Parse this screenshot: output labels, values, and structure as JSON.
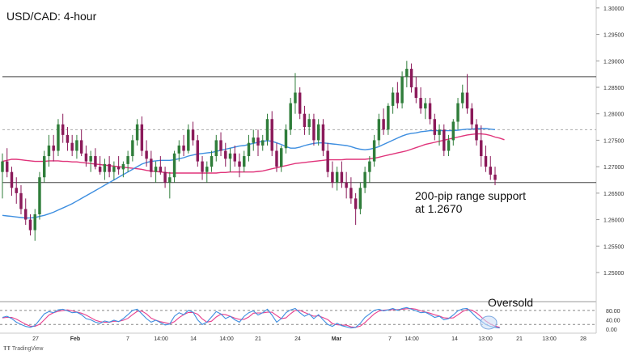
{
  "chart_data": {
    "type": "candlestick",
    "title": "USD/CAD: 4-hour",
    "price_axis": {
      "ticks": [
        "1.30000",
        "1.29500",
        "1.29000",
        "1.28500",
        "1.28000",
        "1.27500",
        "1.27000",
        "1.26500",
        "1.26000",
        "1.25500",
        "1.25000"
      ],
      "range": [
        1.2445,
        1.3015
      ]
    },
    "osc_axis": {
      "ticks": [
        "80.00",
        "40.00",
        "0.00"
      ],
      "range": [
        -10,
        100
      ]
    },
    "time_labels": [
      "27",
      "Feb",
      "7",
      "14:00",
      "14",
      "14:00",
      "21",
      "24",
      "Mar",
      "7",
      "14:00",
      "14",
      "13:00",
      "21",
      "13:00",
      "28"
    ],
    "time_label_bold": [
      false,
      true,
      false,
      false,
      false,
      false,
      false,
      false,
      true,
      false,
      false,
      false,
      false,
      false,
      false,
      false
    ],
    "levels": [
      {
        "value": 1.287,
        "style": "solid"
      },
      {
        "value": 1.277,
        "style": "dashed"
      },
      {
        "value": 1.267,
        "style": "solid"
      }
    ],
    "osc_levels": [
      {
        "value": 80,
        "style": "dashed"
      },
      {
        "value": 20,
        "style": "dashed"
      }
    ],
    "candles_ohlc": [
      [
        1.269,
        1.2725,
        1.264,
        1.271
      ],
      [
        1.271,
        1.2735,
        1.268,
        1.269
      ],
      [
        1.269,
        1.27,
        1.2645,
        1.266
      ],
      [
        1.266,
        1.268,
        1.263,
        1.265
      ],
      [
        1.265,
        1.2665,
        1.261,
        1.262
      ],
      [
        1.262,
        1.264,
        1.259,
        1.26
      ],
      [
        1.26,
        1.261,
        1.257,
        1.258
      ],
      [
        1.258,
        1.262,
        1.256,
        1.261
      ],
      [
        1.261,
        1.269,
        1.26,
        1.268
      ],
      [
        1.268,
        1.273,
        1.267,
        1.272
      ],
      [
        1.272,
        1.276,
        1.27,
        1.274
      ],
      [
        1.274,
        1.276,
        1.271,
        1.273
      ],
      [
        1.273,
        1.279,
        1.272,
        1.278
      ],
      [
        1.278,
        1.28,
        1.2745,
        1.276
      ],
      [
        1.276,
        1.2775,
        1.273,
        1.2745
      ],
      [
        1.2745,
        1.276,
        1.272,
        1.273
      ],
      [
        1.273,
        1.276,
        1.2715,
        1.275
      ],
      [
        1.275,
        1.277,
        1.272,
        1.2725
      ],
      [
        1.2725,
        1.274,
        1.27,
        1.271
      ],
      [
        1.271,
        1.273,
        1.269,
        1.272
      ],
      [
        1.272,
        1.2735,
        1.2695,
        1.27
      ],
      [
        1.27,
        1.272,
        1.2685,
        1.269
      ],
      [
        1.269,
        1.2715,
        1.2675,
        1.2705
      ],
      [
        1.2705,
        1.272,
        1.268,
        1.269
      ],
      [
        1.269,
        1.271,
        1.2675,
        1.27
      ],
      [
        1.27,
        1.272,
        1.2685,
        1.2695
      ],
      [
        1.2695,
        1.271,
        1.268,
        1.2705
      ],
      [
        1.2705,
        1.273,
        1.269,
        1.272
      ],
      [
        1.272,
        1.276,
        1.271,
        1.275
      ],
      [
        1.275,
        1.279,
        1.274,
        1.278
      ],
      [
        1.278,
        1.2795,
        1.272,
        1.273
      ],
      [
        1.273,
        1.275,
        1.27,
        1.2715
      ],
      [
        1.2715,
        1.273,
        1.268,
        1.269
      ],
      [
        1.269,
        1.271,
        1.267,
        1.27
      ],
      [
        1.27,
        1.272,
        1.2685,
        1.269
      ],
      [
        1.269,
        1.27,
        1.266,
        1.267
      ],
      [
        1.267,
        1.269,
        1.264,
        1.268
      ],
      [
        1.268,
        1.273,
        1.267,
        1.2725
      ],
      [
        1.2725,
        1.275,
        1.271,
        1.274
      ],
      [
        1.274,
        1.276,
        1.272,
        1.273
      ],
      [
        1.273,
        1.278,
        1.2725,
        1.277
      ],
      [
        1.277,
        1.2785,
        1.274,
        1.275
      ],
      [
        1.275,
        1.276,
        1.27,
        1.271
      ],
      [
        1.271,
        1.272,
        1.2675,
        1.269
      ],
      [
        1.269,
        1.271,
        1.267,
        1.27
      ],
      [
        1.27,
        1.273,
        1.269,
        1.272
      ],
      [
        1.272,
        1.276,
        1.271,
        1.275
      ],
      [
        1.275,
        1.2765,
        1.272,
        1.273
      ],
      [
        1.273,
        1.2745,
        1.27,
        1.2715
      ],
      [
        1.2715,
        1.2735,
        1.269,
        1.2725
      ],
      [
        1.2725,
        1.274,
        1.27,
        1.271
      ],
      [
        1.271,
        1.2725,
        1.268,
        1.27
      ],
      [
        1.27,
        1.273,
        1.269,
        1.272
      ],
      [
        1.272,
        1.276,
        1.271,
        1.2745
      ],
      [
        1.2745,
        1.277,
        1.273,
        1.2755
      ],
      [
        1.2755,
        1.277,
        1.272,
        1.274
      ],
      [
        1.274,
        1.276,
        1.273,
        1.275
      ],
      [
        1.275,
        1.28,
        1.274,
        1.279
      ],
      [
        1.279,
        1.2805,
        1.272,
        1.273
      ],
      [
        1.273,
        1.2745,
        1.269,
        1.27
      ],
      [
        1.27,
        1.274,
        1.269,
        1.2735
      ],
      [
        1.2735,
        1.278,
        1.2725,
        1.277
      ],
      [
        1.277,
        1.283,
        1.276,
        1.282
      ],
      [
        1.282,
        1.2877,
        1.28,
        1.284
      ],
      [
        1.284,
        1.285,
        1.279,
        1.28
      ],
      [
        1.28,
        1.2815,
        1.276,
        1.2775
      ],
      [
        1.2775,
        1.28,
        1.276,
        1.279
      ],
      [
        1.279,
        1.28,
        1.274,
        1.275
      ],
      [
        1.275,
        1.279,
        1.274,
        1.278
      ],
      [
        1.278,
        1.279,
        1.272,
        1.273
      ],
      [
        1.273,
        1.2745,
        1.268,
        1.269
      ],
      [
        1.269,
        1.271,
        1.266,
        1.267
      ],
      [
        1.267,
        1.27,
        1.2655,
        1.269
      ],
      [
        1.269,
        1.271,
        1.266,
        1.267
      ],
      [
        1.267,
        1.269,
        1.264,
        1.266
      ],
      [
        1.266,
        1.268,
        1.263,
        1.264
      ],
      [
        1.264,
        1.265,
        1.259,
        1.262
      ],
      [
        1.262,
        1.267,
        1.261,
        1.266
      ],
      [
        1.266,
        1.27,
        1.265,
        1.269
      ],
      [
        1.269,
        1.272,
        1.267,
        1.271
      ],
      [
        1.271,
        1.276,
        1.27,
        1.275
      ],
      [
        1.275,
        1.28,
        1.274,
        1.279
      ],
      [
        1.279,
        1.281,
        1.276,
        1.277
      ],
      [
        1.277,
        1.282,
        1.276,
        1.2815
      ],
      [
        1.2815,
        1.285,
        1.28,
        1.284
      ],
      [
        1.284,
        1.286,
        1.281,
        1.282
      ],
      [
        1.282,
        1.288,
        1.281,
        1.287
      ],
      [
        1.287,
        1.29,
        1.285,
        1.2885
      ],
      [
        1.2885,
        1.2895,
        1.284,
        1.285
      ],
      [
        1.285,
        1.287,
        1.282,
        1.283
      ],
      [
        1.283,
        1.285,
        1.28,
        1.281
      ],
      [
        1.281,
        1.283,
        1.279,
        1.282
      ],
      [
        1.282,
        1.283,
        1.278,
        1.279
      ],
      [
        1.279,
        1.28,
        1.275,
        1.276
      ],
      [
        1.276,
        1.278,
        1.274,
        1.277
      ],
      [
        1.277,
        1.278,
        1.272,
        1.273
      ],
      [
        1.273,
        1.276,
        1.272,
        1.275
      ],
      [
        1.275,
        1.279,
        1.274,
        1.2785
      ],
      [
        1.2785,
        1.283,
        1.277,
        1.282
      ],
      [
        1.282,
        1.2855,
        1.281,
        1.284
      ],
      [
        1.284,
        1.2875,
        1.28,
        1.281
      ],
      [
        1.281,
        1.282,
        1.277,
        1.278
      ],
      [
        1.278,
        1.279,
        1.274,
        1.275
      ],
      [
        1.275,
        1.2778,
        1.27,
        1.272
      ],
      [
        1.272,
        1.274,
        1.269,
        1.27
      ],
      [
        1.27,
        1.272,
        1.2675,
        1.2685
      ],
      [
        1.2685,
        1.27,
        1.2665,
        1.2675
      ]
    ],
    "sma_blue": [
      1.2608,
      1.2607,
      1.2606,
      1.2605,
      1.2604,
      1.2603,
      1.2603,
      1.2604,
      1.2606,
      1.2608,
      1.2611,
      1.2614,
      1.2618,
      1.2622,
      1.2626,
      1.263,
      1.2635,
      1.264,
      1.2645,
      1.265,
      1.2655,
      1.266,
      1.2665,
      1.267,
      1.2675,
      1.268,
      1.2685,
      1.269,
      1.2695,
      1.27,
      1.2705,
      1.2708,
      1.271,
      1.2711,
      1.2712,
      1.2712,
      1.2712,
      1.2713,
      1.2715,
      1.2717,
      1.272,
      1.2722,
      1.2724,
      1.2725,
      1.2726,
      1.2727,
      1.2729,
      1.2731,
      1.2733,
      1.2735,
      1.2737,
      1.2739,
      1.274,
      1.2742,
      1.2744,
      1.2746,
      1.2748,
      1.2749,
      1.2748,
      1.2745,
      1.2742,
      1.2738,
      1.2735,
      1.2735,
      1.2737,
      1.274,
      1.2742,
      1.2744,
      1.2745,
      1.2745,
      1.2744,
      1.2743,
      1.2742,
      1.2741,
      1.274,
      1.2738,
      1.2735,
      1.2733,
      1.2732,
      1.2733,
      1.2735,
      1.2738,
      1.2742,
      1.2746,
      1.275,
      1.2754,
      1.2758,
      1.2761,
      1.2763,
      1.2764,
      1.2766,
      1.2767,
      1.2768,
      1.2768,
      1.2768,
      1.2768,
      1.2768,
      1.2768,
      1.2769,
      1.277,
      1.2771,
      1.2771,
      1.2772,
      1.2772,
      1.2772,
      1.2771,
      1.277
    ],
    "sma_pink": [
      1.271,
      1.2712,
      1.2714,
      1.2714,
      1.2713,
      1.2712,
      1.2711,
      1.271,
      1.271,
      1.271,
      1.2711,
      1.2711,
      1.2711,
      1.271,
      1.271,
      1.2709,
      1.2709,
      1.2708,
      1.2707,
      1.2706,
      1.2705,
      1.2704,
      1.2703,
      1.2702,
      1.2701,
      1.27,
      1.2699,
      1.2698,
      1.2697,
      1.2696,
      1.2695,
      1.2693,
      1.2692,
      1.2691,
      1.269,
      1.2689,
      1.2688,
      1.2688,
      1.2688,
      1.2688,
      1.2688,
      1.2688,
      1.2688,
      1.2688,
      1.2688,
      1.2688,
      1.2688,
      1.2689,
      1.2689,
      1.269,
      1.269,
      1.269,
      1.269,
      1.269,
      1.269,
      1.2691,
      1.2692,
      1.2694,
      1.2696,
      1.2698,
      1.27,
      1.2702,
      1.2704,
      1.2706,
      1.2707,
      1.2708,
      1.2709,
      1.271,
      1.2711,
      1.2712,
      1.2713,
      1.2713,
      1.2713,
      1.2713,
      1.2714,
      1.2714,
      1.2714,
      1.2714,
      1.2714,
      1.2715,
      1.2716,
      1.2718,
      1.272,
      1.2722,
      1.2724,
      1.2726,
      1.2728,
      1.273,
      1.2733,
      1.2736,
      1.2739,
      1.2742,
      1.2744,
      1.2746,
      1.2748,
      1.275,
      1.2752,
      1.2754,
      1.2756,
      1.2758,
      1.276,
      1.2761,
      1.2762,
      1.2762,
      1.2761,
      1.2759,
      1.2756,
      1.2754,
      1.2751
    ],
    "stoch_k": [
      50,
      55,
      45,
      30,
      20,
      12,
      8,
      15,
      40,
      65,
      75,
      70,
      82,
      85,
      78,
      70,
      72,
      62,
      45,
      40,
      30,
      25,
      35,
      30,
      38,
      32,
      45,
      62,
      80,
      85,
      65,
      45,
      30,
      38,
      28,
      18,
      22,
      55,
      70,
      62,
      80,
      72,
      40,
      20,
      30,
      52,
      75,
      65,
      45,
      55,
      40,
      30,
      55,
      70,
      78,
      60,
      70,
      85,
      60,
      30,
      45,
      70,
      82,
      88,
      70,
      55,
      65,
      45,
      62,
      40,
      20,
      12,
      25,
      15,
      10,
      5,
      8,
      25,
      50,
      65,
      80,
      85,
      78,
      82,
      88,
      80,
      88,
      92,
      85,
      78,
      70,
      72,
      62,
      50,
      55,
      40,
      45,
      60,
      78,
      86,
      88,
      70,
      50,
      35,
      20,
      12,
      8,
      5
    ],
    "stoch_d": [
      48,
      50,
      50,
      43,
      32,
      21,
      13,
      12,
      21,
      40,
      60,
      70,
      76,
      79,
      82,
      78,
      73,
      68,
      60,
      49,
      38,
      32,
      30,
      30,
      34,
      33,
      38,
      46,
      62,
      76,
      77,
      65,
      47,
      38,
      32,
      28,
      23,
      32,
      49,
      62,
      71,
      71,
      64,
      44,
      30,
      34,
      52,
      64,
      62,
      55,
      47,
      42,
      42,
      52,
      68,
      69,
      69,
      72,
      72,
      58,
      45,
      48,
      66,
      80,
      80,
      71,
      63,
      55,
      57,
      49,
      41,
      24,
      19,
      17,
      17,
      10,
      8,
      13,
      28,
      47,
      65,
      77,
      81,
      82,
      83,
      83,
      85,
      87,
      88,
      85,
      78,
      73,
      68,
      61,
      56,
      48,
      47,
      48,
      61,
      75,
      84,
      81,
      69,
      52,
      35,
      22,
      13,
      8
    ],
    "annotations": [
      {
        "text": "200-pip range support",
        "line": 1
      },
      {
        "text": "at 1.2670",
        "line": 2
      },
      {
        "text": "Oversold",
        "line": 1
      }
    ],
    "colors": {
      "bull": "#2f7d3a",
      "bear": "#8b1a5a",
      "sma_blue": "#3d8ee0",
      "sma_pink": "#e0337a",
      "stoch_k": "#3d8ee0",
      "stoch_d": "#e83e8c",
      "level": "#333333",
      "circle": "#90b8e8"
    }
  },
  "branding": {
    "label": "TradingView"
  }
}
